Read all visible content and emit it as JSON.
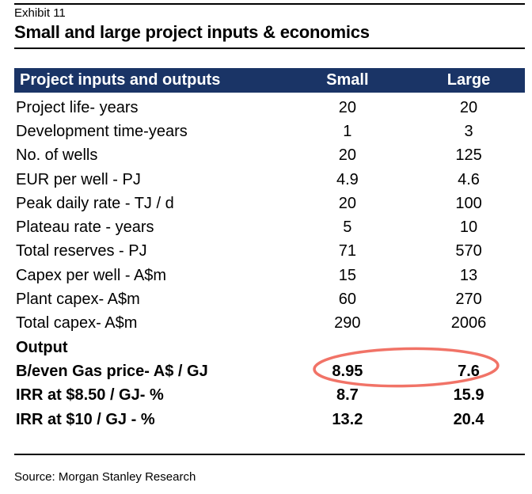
{
  "exhibit_label": "Exhibit 11",
  "title": "Small and large project inputs & economics",
  "source": "Source: Morgan Stanley Research",
  "colors": {
    "header_bg": "#1A3466",
    "header_text": "#FFFFFF",
    "highlight_ellipse": "#EF5A4C",
    "text": "#000000"
  },
  "table": {
    "columns": [
      "Project inputs and outputs",
      "Small",
      "Large"
    ],
    "rows": [
      {
        "label": "Project life- years",
        "small": "20",
        "large": "20",
        "bold": false
      },
      {
        "label": "Development time-years",
        "small": "1",
        "large": "3",
        "bold": false
      },
      {
        "label": "No. of wells",
        "small": "20",
        "large": "125",
        "bold": false
      },
      {
        "label": "EUR per well - PJ",
        "small": "4.9",
        "large": "4.6",
        "bold": false
      },
      {
        "label": "Peak daily rate - TJ / d",
        "small": "20",
        "large": "100",
        "bold": false
      },
      {
        "label": "Plateau rate - years",
        "small": "5",
        "large": "10",
        "bold": false
      },
      {
        "label": "Total reserves - PJ",
        "small": "71",
        "large": "570",
        "bold": false
      },
      {
        "label": "Capex per well - A$m",
        "small": "15",
        "large": "13",
        "bold": false
      },
      {
        "label": "Plant capex- A$m",
        "small": "60",
        "large": "270",
        "bold": false
      },
      {
        "label": "Total capex- A$m",
        "small": "290",
        "large": "2006",
        "bold": false
      },
      {
        "label": "Output",
        "small": "",
        "large": "",
        "bold": true
      },
      {
        "label": "B/even Gas price- A$ / GJ",
        "small": "8.95",
        "large": "7.6",
        "bold": true,
        "highlighted": true
      },
      {
        "label": "IRR at $8.50 / GJ- %",
        "small": "8.7",
        "large": "15.9",
        "bold": true
      },
      {
        "label": "IRR at $10 / GJ - %",
        "small": "13.2",
        "large": "20.4",
        "bold": true
      }
    ]
  },
  "annotation": {
    "shape": "ellipse",
    "highlights": "B/even Gas price values for Small and Large"
  }
}
